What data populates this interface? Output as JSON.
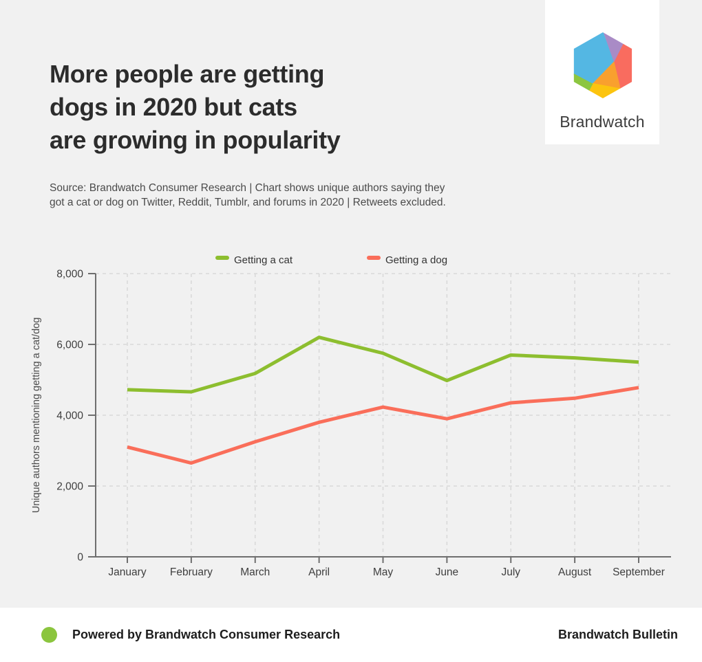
{
  "header": {
    "title_lines": [
      "More people are getting",
      "dogs in 2020 but cats",
      "are growing in popularity"
    ],
    "source_text": "Source: Brandwatch Consumer Research | Chart shows unique authors saying they got a cat or dog on Twitter, Reddit, Tumblr, and forums in 2020 | Retweets excluded.",
    "logo": {
      "brand": "Brandwatch",
      "facet_colors": {
        "blue": "#54b7e3",
        "purple": "#a98bc6",
        "coral": "#f96c5f",
        "orange": "#f9a02e",
        "yellow": "#fcc40f",
        "green": "#8cc640"
      }
    }
  },
  "chart_data": {
    "type": "line",
    "title": "",
    "categories": [
      "January",
      "February",
      "March",
      "April",
      "May",
      "June",
      "July",
      "August",
      "September"
    ],
    "series": [
      {
        "name": "Getting a cat",
        "color": "#8dbe2f",
        "values": [
          4720,
          4660,
          5180,
          6200,
          5750,
          4980,
          5700,
          5620,
          5500
        ]
      },
      {
        "name": "Getting a dog",
        "color": "#fa6e5a",
        "values": [
          3100,
          2650,
          3250,
          3800,
          4230,
          3900,
          4350,
          4480,
          4780
        ]
      }
    ],
    "xlabel": "",
    "ylabel": "Unique authors mentioning getting a cat/dog",
    "ylim": [
      0,
      8000
    ],
    "yticks": [
      0,
      2000,
      4000,
      6000,
      8000
    ],
    "ytick_labels": [
      "0",
      "2,000",
      "4,000",
      "6,000",
      "8,000"
    ],
    "grid": "dashed horizontal and vertical",
    "legend_position": "top"
  },
  "footer": {
    "left_text": "Powered by Brandwatch Consumer Research",
    "right_text": "Brandwatch Bulletin",
    "dot_color": "#8bc53e"
  },
  "colors": {
    "page_bg": "#f1f1f1",
    "card_bg": "#ffffff",
    "axis": "#6e6e6e",
    "gridline": "#d9d9d9",
    "tick_label": "#3e3e3e",
    "legend_text": "#333333"
  }
}
